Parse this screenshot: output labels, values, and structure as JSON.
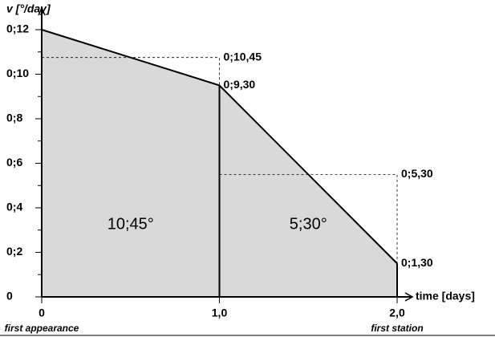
{
  "chart_data": {
    "type": "area",
    "y_label": "v [°/day]",
    "x_label": "time [days]",
    "x": [
      0,
      1,
      2
    ],
    "series": [
      {
        "values": [
          12,
          9.5,
          1.5
        ],
        "value_labels": [
          null,
          "0;9,30",
          "0;1,30"
        ],
        "color": "#000000",
        "fill": "#d9d9d9"
      }
    ],
    "xlim": [
      0,
      2
    ],
    "xticks": [
      0,
      {
        "value": 1,
        "label": "1,0"
      },
      {
        "value": 2,
        "label": "2,0"
      }
    ],
    "xtick_notes": [
      "first appearance",
      null,
      "first station"
    ],
    "ylim": [
      0,
      12
    ],
    "yticks": [
      0,
      {
        "value": 2,
        "label": "0;2"
      },
      {
        "value": 4,
        "label": "0;4"
      },
      {
        "value": 6,
        "label": "0;6"
      },
      {
        "value": 8,
        "label": "0;8"
      },
      {
        "value": 10,
        "label": "0;10"
      },
      {
        "value": 12,
        "label": "0;12"
      }
    ],
    "yminorticks": [
      1,
      3,
      5,
      7,
      9,
      11
    ],
    "reference_lines": [
      {
        "x": [
          0,
          1
        ],
        "value": 10.75,
        "label": "0;10,45"
      },
      {
        "x": [
          1,
          2
        ],
        "value": 5.5,
        "label": "0;5,30"
      }
    ],
    "area_labels": [
      {
        "text": "10;45°",
        "x": [
          0,
          1
        ]
      },
      {
        "text": "5;30°",
        "x": [
          1,
          2
        ]
      }
    ]
  }
}
